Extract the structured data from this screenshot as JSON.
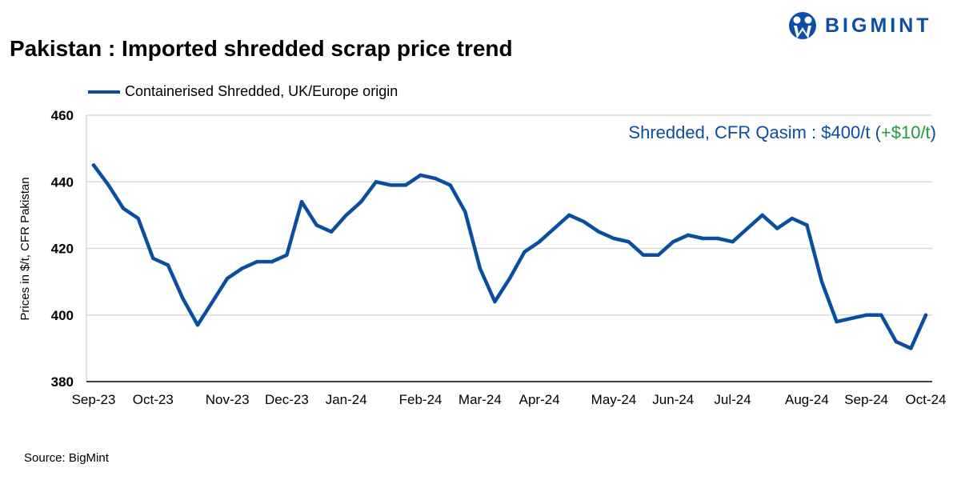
{
  "title": "Pakistan : Imported shredded scrap price trend",
  "logo": {
    "text": "BIGMINT",
    "color": "#0d4fa8"
  },
  "source": "Source: BigMint",
  "chart_data": {
    "type": "line",
    "title": "Pakistan : Imported shredded scrap price trend",
    "ylabel": "Prices in $/t, CFR Pakistan",
    "xlabel": "",
    "ylim": [
      380,
      460
    ],
    "yticks": [
      380,
      400,
      420,
      440,
      460
    ],
    "grid": true,
    "legend_placement": "top-left",
    "categories": [
      "Sep-23",
      "",
      "",
      "",
      "Oct-23",
      "",
      "",
      "",
      "",
      "Nov-23",
      "",
      "",
      "",
      "Dec-23",
      "",
      "",
      "",
      "Jan-24",
      "",
      "",
      "",
      "",
      "Feb-24",
      "",
      "",
      "",
      "Mar-24",
      "",
      "",
      "",
      "Apr-24",
      "",
      "",
      "",
      "",
      "May-24",
      "",
      "",
      "",
      "Jun-24",
      "",
      "",
      "",
      "Jul-24",
      "",
      "",
      "",
      "",
      "Aug-24",
      "",
      "",
      "",
      "Sep-24",
      "",
      "",
      "",
      "Oct-24"
    ],
    "series": [
      {
        "name": "Containerised Shredded, UK/Europe origin",
        "color": "#0a4ea2",
        "values": [
          445,
          439,
          432,
          429,
          417,
          415,
          405,
          397,
          404,
          411,
          414,
          416,
          416,
          418,
          434,
          427,
          425,
          430,
          434,
          440,
          439,
          439,
          442,
          441,
          439,
          431,
          414,
          404,
          411,
          419,
          422,
          426,
          430,
          428,
          425,
          423,
          422,
          418,
          418,
          422,
          424,
          423,
          423,
          422,
          426,
          430,
          426,
          429,
          427,
          410,
          398,
          399,
          400,
          400,
          392,
          390,
          400
        ]
      }
    ],
    "annotation": {
      "label": "Shredded, CFR Qasim : $400/t",
      "open": "(",
      "change": "+$10/t",
      "close": ")",
      "label_color": "#0a4ea2",
      "change_color": "#1e9e3e"
    }
  }
}
